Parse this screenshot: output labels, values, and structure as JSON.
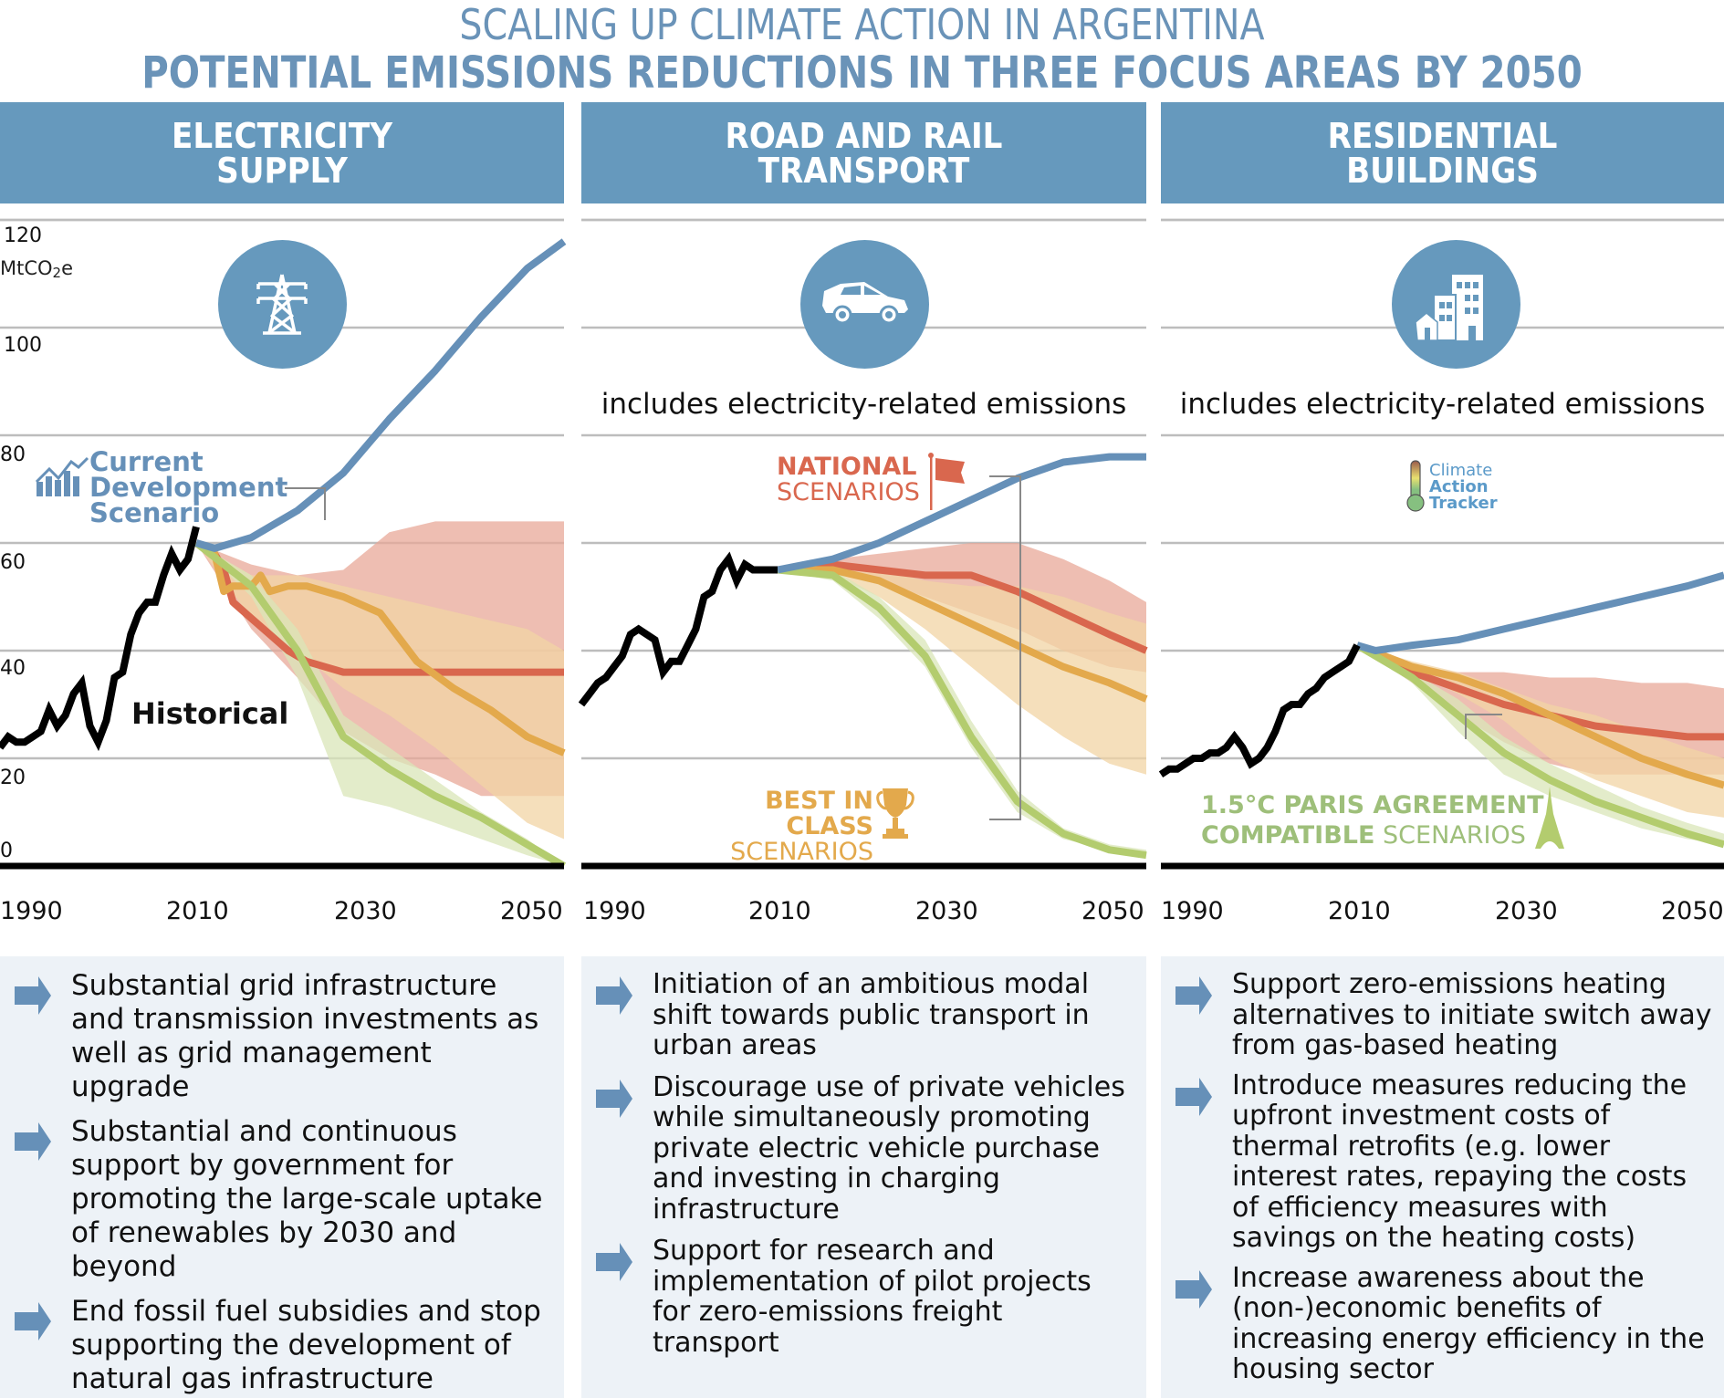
{
  "title": "SCALING UP CLIMATE ACTION IN ARGENTINA",
  "subtitle": "POTENTIAL EMISSIONS REDUCTIONS IN THREE FOCUS AREAS BY 2050",
  "colors": {
    "header_bg": "#6699bd",
    "historical": "#000000",
    "current_development": "#6690b8",
    "national": "#d9674e",
    "national_band": "#e8a898",
    "best_in_class": "#e3a94c",
    "best_in_class_band": "#f1d4a4",
    "paris": "#b3cc6e",
    "paris_band": "#d9e6b8",
    "bottom_bg": "#edf2f7",
    "arrow": "#6690b8"
  },
  "panels": [
    {
      "header_line1": "ELECTRICITY",
      "header_line2": "SUPPLY",
      "icon": "power-pylon-icon",
      "note": "",
      "bullets": [
        "Substantial grid infrastructure and transmission investments as well as grid management upgrade",
        "Substantial and continuous support by government for promoting the large-scale uptake of renewables by 2030 and beyond",
        "End fossil fuel subsidies and stop supporting the development of natural gas infrastructure"
      ]
    },
    {
      "header_line1": "ROAD AND RAIL",
      "header_line2": "TRANSPORT",
      "icon": "car-icon",
      "note": "includes electricity-related emissions",
      "bullets": [
        "Initiation of an ambitious modal shift towards public transport in urban areas",
        "Discourage use of private vehicles while simultaneously promoting private electric vehicle purchase and investing in charging infrastructure",
        "Support for research and implementation of pilot projects for zero-emissions freight transport"
      ]
    },
    {
      "header_line1": "RESIDENTIAL",
      "header_line2": "BUILDINGS",
      "icon": "buildings-icon",
      "note": "includes electricity-related emissions",
      "bullets": [
        "Support zero-emissions heating alternatives to initiate switch away from gas-based heating",
        "Introduce measures reducing the upfront investment costs of thermal retrofits (e.g. lower interest rates, repaying the costs of efficiency measures with savings on the heating costs)",
        "Increase awareness about the (non-)economic benefits of increasing energy efficiency in the housing sector"
      ]
    }
  ],
  "annotations": {
    "current_dev_line1": "Current",
    "current_dev_line2": "Development",
    "current_dev_line3": "Scenario",
    "historical": "Historical",
    "national_line1": "NATIONAL",
    "national_line2": "SCENARIOS",
    "best_line1": "BEST IN CLASS",
    "best_line2": "SCENARIOS",
    "paris_line1": "1.5°C PARIS AGREEMENT",
    "paris_line2_bold": "COMPATIBLE",
    "paris_line2_light": " SCENARIOS",
    "cat_line1": "Climate",
    "cat_line2": "Action",
    "cat_line3": "Tracker"
  },
  "chart_data": [
    {
      "type": "line",
      "title": "ELECTRICITY SUPPLY",
      "ylabel": "MtCO2e",
      "ylim": [
        0,
        120
      ],
      "yticks": [
        0,
        20,
        40,
        60,
        80,
        100,
        120
      ],
      "xlim": [
        1990,
        2050
      ],
      "xticks": [
        1990,
        2010,
        2030,
        2050
      ],
      "historical": {
        "x": [
          1990,
          1991,
          1992,
          1993,
          1994,
          1995,
          1996,
          1997,
          1998,
          1999,
          2000,
          2001,
          2002,
          2003,
          2004,
          2005,
          2006,
          2007,
          2008,
          2009,
          2010,
          2011,
          2012,
          2013,
          2014
        ],
        "y": [
          22,
          24,
          23,
          23,
          24,
          25,
          29,
          26,
          28,
          32,
          34,
          26,
          23,
          27,
          35,
          36,
          43,
          47,
          49,
          49,
          54,
          58,
          55,
          57,
          63
        ]
      },
      "series": [
        {
          "name": "Current Development Scenario",
          "x": [
            2014,
            2016,
            2020,
            2025,
            2030,
            2035,
            2040,
            2045,
            2050,
            2054
          ],
          "y": [
            60,
            59,
            61,
            66,
            73,
            83,
            92,
            102,
            111,
            116
          ]
        },
        {
          "name": "National Scenarios",
          "x": [
            2014,
            2016,
            2017,
            2018,
            2020,
            2022,
            2024,
            2026,
            2028,
            2030,
            2035,
            2040,
            2045,
            2050,
            2054
          ],
          "y": [
            60,
            58,
            55,
            49,
            46,
            43,
            40,
            38,
            37,
            36,
            36,
            36,
            36,
            36,
            36
          ]
        },
        {
          "name": "Best in Class Scenarios",
          "x": [
            2014,
            2016,
            2017,
            2018,
            2020,
            2021,
            2022,
            2024,
            2026,
            2030,
            2034,
            2038,
            2042,
            2046,
            2050,
            2054
          ],
          "y": [
            60,
            58,
            51,
            52,
            52,
            54,
            51,
            52,
            52,
            50,
            47,
            38,
            33,
            29,
            24,
            21
          ]
        },
        {
          "name": "1.5°C Paris Agreement Compatible Scenarios",
          "x": [
            2014,
            2020,
            2025,
            2030,
            2035,
            2040,
            2045,
            2050,
            2054
          ],
          "y": [
            60,
            52,
            40,
            24,
            18,
            13,
            9,
            4,
            0
          ]
        }
      ],
      "bands": [
        {
          "name": "National range",
          "x": [
            2014,
            2020,
            2025,
            2030,
            2035,
            2040,
            2045,
            2050,
            2054
          ],
          "low": [
            60,
            44,
            35,
            25,
            20,
            17,
            13,
            13,
            13
          ],
          "high": [
            60,
            56,
            54,
            55,
            62,
            64,
            64,
            64,
            64
          ]
        },
        {
          "name": "Best in Class range",
          "x": [
            2014,
            2020,
            2025,
            2030,
            2035,
            2040,
            2045,
            2050,
            2054
          ],
          "low": [
            60,
            46,
            40,
            33,
            28,
            22,
            15,
            8,
            5
          ],
          "high": [
            60,
            54,
            54,
            52,
            50,
            48,
            46,
            44,
            40
          ]
        },
        {
          "name": "Paris range",
          "x": [
            2014,
            2020,
            2025,
            2030,
            2035,
            2040,
            2045,
            2050,
            2054
          ],
          "low": [
            60,
            50,
            35,
            13,
            11,
            8,
            5,
            2,
            0
          ],
          "high": [
            60,
            54,
            44,
            28,
            22,
            16,
            10,
            5,
            0
          ]
        }
      ]
    },
    {
      "type": "line",
      "title": "ROAD AND RAIL TRANSPORT",
      "ylabel": "MtCO2e",
      "ylim": [
        0,
        120
      ],
      "xlim": [
        1990,
        2050
      ],
      "xticks": [
        1990,
        2010,
        2030,
        2050
      ],
      "historical": {
        "x": [
          1990,
          1991,
          1992,
          1993,
          1994,
          1995,
          1996,
          1997,
          1998,
          1999,
          2000,
          2001,
          2002,
          2003,
          2004,
          2005,
          2006,
          2007,
          2008,
          2009,
          2010,
          2011,
          2012,
          2013,
          2014
        ],
        "y": [
          30,
          32,
          34,
          35,
          37,
          39,
          43,
          44,
          43,
          42,
          36,
          38,
          38,
          41,
          44,
          50,
          51,
          55,
          57,
          53,
          56,
          55,
          55,
          55,
          55
        ]
      },
      "series": [
        {
          "name": "Current Development Scenario",
          "x": [
            2014,
            2020,
            2025,
            2030,
            2035,
            2040,
            2045,
            2050,
            2054
          ],
          "y": [
            55,
            57,
            60,
            64,
            68,
            72,
            75,
            76,
            76
          ]
        },
        {
          "name": "National Scenarios",
          "x": [
            2014,
            2020,
            2025,
            2030,
            2035,
            2040,
            2045,
            2050,
            2054
          ],
          "y": [
            55,
            56,
            55,
            54,
            54,
            51,
            47,
            43,
            40
          ]
        },
        {
          "name": "Best in Class Scenarios",
          "x": [
            2014,
            2020,
            2025,
            2030,
            2035,
            2040,
            2045,
            2050,
            2054
          ],
          "y": [
            55,
            55,
            53,
            49,
            45,
            41,
            37,
            34,
            31
          ]
        },
        {
          "name": "1.5°C Paris Agreement Compatible Scenarios",
          "x": [
            2014,
            2020,
            2025,
            2030,
            2035,
            2040,
            2045,
            2050,
            2054
          ],
          "y": [
            55,
            54,
            48,
            39,
            24,
            12,
            6,
            3,
            2
          ]
        }
      ],
      "bands": [
        {
          "name": "National range",
          "x": [
            2014,
            2020,
            2025,
            2030,
            2035,
            2040,
            2045,
            2050,
            2054
          ],
          "low": [
            55,
            55,
            53,
            50,
            47,
            44,
            40,
            37,
            36
          ],
          "high": [
            55,
            57,
            58,
            59,
            60,
            60,
            57,
            53,
            49
          ]
        },
        {
          "name": "Best in Class range",
          "x": [
            2014,
            2020,
            2025,
            2030,
            2035,
            2040,
            2045,
            2050,
            2054
          ],
          "low": [
            55,
            54,
            50,
            44,
            37,
            30,
            24,
            19,
            17
          ],
          "high": [
            55,
            56,
            55,
            53,
            52,
            52,
            50,
            47,
            45
          ]
        },
        {
          "name": "Paris range",
          "x": [
            2014,
            2020,
            2025,
            2030,
            2035,
            2040,
            2045,
            2050,
            2054
          ],
          "low": [
            55,
            53,
            46,
            37,
            22,
            10,
            5,
            3,
            2
          ],
          "high": [
            55,
            55,
            50,
            42,
            27,
            14,
            7,
            4,
            3
          ]
        }
      ]
    },
    {
      "type": "line",
      "title": "RESIDENTIAL BUILDINGS",
      "ylabel": "MtCO2e",
      "ylim": [
        0,
        120
      ],
      "xlim": [
        1990,
        2050
      ],
      "xticks": [
        1990,
        2010,
        2030,
        2050
      ],
      "historical": {
        "x": [
          1990,
          1991,
          1992,
          1993,
          1994,
          1995,
          1996,
          1997,
          1998,
          1999,
          2000,
          2001,
          2002,
          2003,
          2004,
          2005,
          2006,
          2007,
          2008,
          2009,
          2010,
          2011,
          2012,
          2013,
          2014
        ],
        "y": [
          17,
          18,
          18,
          19,
          20,
          20,
          21,
          21,
          22,
          24,
          22,
          19,
          20,
          22,
          25,
          29,
          30,
          30,
          32,
          33,
          35,
          36,
          37,
          38,
          41
        ]
      },
      "series": [
        {
          "name": "Current Development Scenario",
          "x": [
            2014,
            2016,
            2020,
            2025,
            2030,
            2035,
            2040,
            2045,
            2050,
            2054
          ],
          "y": [
            41,
            40,
            41,
            42,
            44,
            46,
            48,
            50,
            52,
            54
          ]
        },
        {
          "name": "National Scenarios",
          "x": [
            2014,
            2020,
            2025,
            2030,
            2035,
            2040,
            2045,
            2050,
            2054
          ],
          "y": [
            41,
            36,
            33,
            30,
            28,
            26,
            25,
            24,
            24
          ]
        },
        {
          "name": "Best in Class Scenarios",
          "x": [
            2014,
            2020,
            2025,
            2030,
            2035,
            2040,
            2045,
            2050,
            2054
          ],
          "y": [
            41,
            37,
            35,
            32,
            28,
            24,
            20,
            17,
            15
          ]
        },
        {
          "name": "1.5°C Paris Agreement Compatible Scenarios",
          "x": [
            2014,
            2020,
            2025,
            2030,
            2035,
            2040,
            2045,
            2050,
            2054
          ],
          "y": [
            41,
            35,
            28,
            21,
            16,
            12,
            9,
            6,
            4
          ]
        }
      ],
      "bands": [
        {
          "name": "National range",
          "x": [
            2014,
            2020,
            2025,
            2030,
            2035,
            2040,
            2045,
            2050,
            2054
          ],
          "low": [
            41,
            34,
            28,
            23,
            19,
            17,
            17,
            17,
            17
          ],
          "high": [
            41,
            37,
            36,
            36,
            35,
            35,
            34,
            34,
            33
          ]
        },
        {
          "name": "Best in Class range",
          "x": [
            2014,
            2020,
            2025,
            2030,
            2035,
            2040,
            2045,
            2050,
            2054
          ],
          "low": [
            41,
            36,
            32,
            27,
            20,
            16,
            13,
            10,
            9
          ],
          "high": [
            41,
            38,
            36,
            33,
            30,
            28,
            25,
            22,
            20
          ]
        },
        {
          "name": "Paris range",
          "x": [
            2014,
            2020,
            2025,
            2030,
            2035,
            2040,
            2045,
            2050,
            2054
          ],
          "low": [
            41,
            34,
            25,
            17,
            13,
            10,
            7,
            5,
            4
          ],
          "high": [
            41,
            36,
            31,
            24,
            19,
            15,
            11,
            8,
            6
          ]
        }
      ]
    }
  ]
}
